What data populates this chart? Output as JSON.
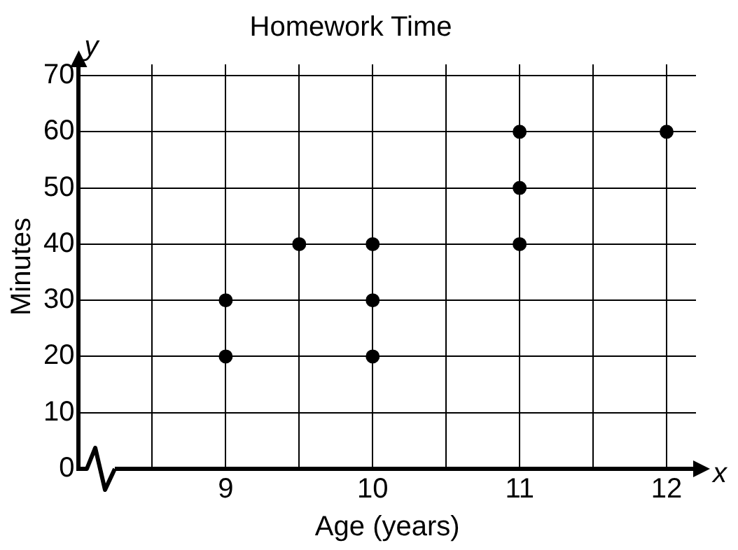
{
  "chart_data": {
    "type": "scatter",
    "title": "Homework Time",
    "xlabel": "Age (years)",
    "ylabel": "Minutes",
    "annotations": [
      "x",
      "y"
    ],
    "series": [
      {
        "color": "#000000",
        "x": [
          9,
          9,
          9.5,
          10,
          10,
          10,
          11,
          11,
          11,
          12
        ],
        "values": [
          20,
          30,
          40,
          20,
          30,
          40,
          40,
          50,
          60,
          60
        ]
      }
    ],
    "xlim": [
      8,
      12.2
    ],
    "xticks": [
      {
        "value": 8,
        "label": null
      },
      {
        "value": 8.5,
        "label": null
      },
      9,
      {
        "value": 9.5,
        "label": null
      },
      10,
      {
        "value": 10.5,
        "label": null
      },
      11,
      {
        "value": 11.5,
        "label": null
      },
      12
    ],
    "ylim": [
      0,
      72
    ],
    "yticks": [
      0,
      10,
      20,
      30,
      40,
      50,
      60,
      70
    ],
    "grid": true,
    "legend": false,
    "marker": "circle"
  }
}
